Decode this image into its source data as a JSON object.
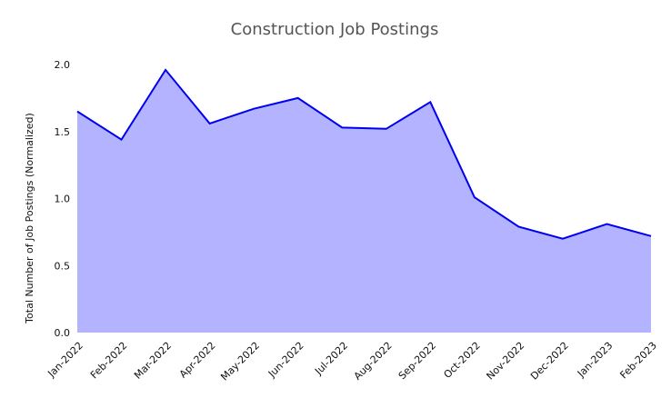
{
  "chart_data": {
    "type": "area",
    "title": "Construction Job Postings",
    "y_label": "Total Number of Job Postings (Normalized)",
    "categories": [
      "Jan-2022",
      "Feb-2022",
      "Mar-2022",
      "Apr-2022",
      "May-2022",
      "Jun-2022",
      "Jul-2022",
      "Aug-2022",
      "Sep-2022",
      "Oct-2022",
      "Nov-2022",
      "Dec-2022",
      "Jan-2023",
      "Feb-2023"
    ],
    "values": [
      1.65,
      1.44,
      1.96,
      1.56,
      1.67,
      1.75,
      1.53,
      1.52,
      1.72,
      1.01,
      0.79,
      0.7,
      0.81,
      0.72
    ],
    "color": "#0000ee",
    "fill": "#b3b3ff",
    "ylim": [
      0,
      2
    ],
    "yticks": [
      {
        "value": 0,
        "label": "0.0"
      },
      {
        "value": 0.5,
        "label": "0.5"
      },
      {
        "value": 1,
        "label": "1.0"
      },
      {
        "value": 1.5,
        "label": "1.5"
      },
      {
        "value": 2,
        "label": "2.0"
      }
    ],
    "grid": false
  }
}
